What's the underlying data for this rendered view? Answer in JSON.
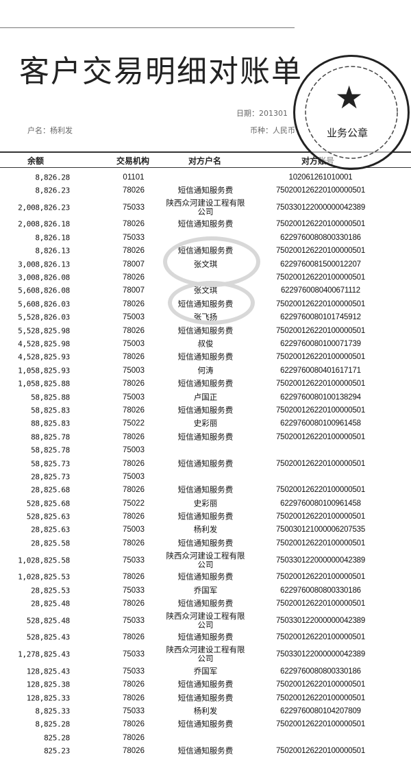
{
  "document": {
    "title": "客户交易明细对账单",
    "account_name_label": "户名：",
    "account_name": "杨利发",
    "date_label": "日期：",
    "date": "201301",
    "currency_label": "币种：",
    "currency": "人民币"
  },
  "stamp": {
    "label": "业务公章",
    "icon": "star-icon",
    "color": "#222222"
  },
  "table": {
    "columns": [
      "余额",
      "交易机构",
      "对方户名",
      "对方账号"
    ],
    "rows": [
      {
        "balance": "8,826.28",
        "org": "01101",
        "name": "",
        "account": "102061261010001"
      },
      {
        "balance": "8,826.23",
        "org": "78026",
        "name": "短信通知服务费",
        "account": "750200126220100000501"
      },
      {
        "balance": "2,008,826.23",
        "org": "75033",
        "name": "陕西众河建设工程有限公司",
        "account": "750330122000000042389",
        "double": true
      },
      {
        "balance": "2,008,826.18",
        "org": "78026",
        "name": "短信通知服务费",
        "account": "750200126220100000501"
      },
      {
        "balance": "8,826.18",
        "org": "75033",
        "name": "",
        "account": "6229760080800330186"
      },
      {
        "balance": "8,826.13",
        "org": "78026",
        "name": "短信通知服务费",
        "account": "750200126220100000501"
      },
      {
        "balance": "3,008,826.13",
        "org": "78007",
        "name": "张文琪",
        "account": "6229760081500012207"
      },
      {
        "balance": "3,008,826.08",
        "org": "78026",
        "name": "",
        "account": "750200126220100000501"
      },
      {
        "balance": "5,608,826.08",
        "org": "78007",
        "name": "张文琪",
        "account": "6229760080400671112"
      },
      {
        "balance": "5,608,826.03",
        "org": "78026",
        "name": "短信通知服务费",
        "account": "750200126220100000501"
      },
      {
        "balance": "5,528,826.03",
        "org": "75003",
        "name": "张飞扬",
        "account": "6229760080101745912"
      },
      {
        "balance": "5,528,825.98",
        "org": "78026",
        "name": "短信通知服务费",
        "account": "750200126220100000501"
      },
      {
        "balance": "4,528,825.98",
        "org": "75003",
        "name": "叔俊",
        "account": "6229760080100071739"
      },
      {
        "balance": "4,528,825.93",
        "org": "78026",
        "name": "短信通知服务费",
        "account": "750200126220100000501"
      },
      {
        "balance": "1,058,825.93",
        "org": "75003",
        "name": "何涛",
        "account": "6229760080401617171"
      },
      {
        "balance": "1,058,825.88",
        "org": "78026",
        "name": "短信通知服务费",
        "account": "750200126220100000501"
      },
      {
        "balance": "58,825.88",
        "org": "75003",
        "name": "卢国正",
        "account": "6229760080100138294"
      },
      {
        "balance": "58,825.83",
        "org": "78026",
        "name": "短信通知服务费",
        "account": "750200126220100000501"
      },
      {
        "balance": "88,825.83",
        "org": "75022",
        "name": "史彩丽",
        "account": "6229760080100961458"
      },
      {
        "balance": "88,825.78",
        "org": "78026",
        "name": "短信通知服务费",
        "account": "750200126220100000501"
      },
      {
        "balance": "58,825.78",
        "org": "75003",
        "name": "",
        "account": ""
      },
      {
        "balance": "58,825.73",
        "org": "78026",
        "name": "短信通知服务费",
        "account": "750200126220100000501"
      },
      {
        "balance": "28,825.73",
        "org": "75003",
        "name": "",
        "account": ""
      },
      {
        "balance": "28,825.68",
        "org": "78026",
        "name": "短信通知服务费",
        "account": "750200126220100000501"
      },
      {
        "balance": "528,825.68",
        "org": "75022",
        "name": "史彩丽",
        "account": "6229760080100961458"
      },
      {
        "balance": "528,825.63",
        "org": "78026",
        "name": "短信通知服务费",
        "account": "750200126220100000501"
      },
      {
        "balance": "28,825.63",
        "org": "75003",
        "name": "杨利发",
        "account": "750030121000006207535"
      },
      {
        "balance": "28,825.58",
        "org": "78026",
        "name": "短信通知服务费",
        "account": "750200126220100000501"
      },
      {
        "balance": "1,028,825.58",
        "org": "75033",
        "name": "陕西众河建设工程有限公司",
        "account": "750330122000000042389",
        "double": true
      },
      {
        "balance": "1,028,825.53",
        "org": "78026",
        "name": "短信通知服务费",
        "account": "750200126220100000501"
      },
      {
        "balance": "28,825.53",
        "org": "75033",
        "name": "乔国军",
        "account": "6229760080800330186"
      },
      {
        "balance": "28,825.48",
        "org": "78026",
        "name": "短信通知服务费",
        "account": "750200126220100000501"
      },
      {
        "balance": "528,825.48",
        "org": "75033",
        "name": "陕西众河建设工程有限公司",
        "account": "750330122000000042389",
        "double": true
      },
      {
        "balance": "528,825.43",
        "org": "78026",
        "name": "短信通知服务费",
        "account": "750200126220100000501"
      },
      {
        "balance": "1,278,825.43",
        "org": "75033",
        "name": "陕西众河建设工程有限公司",
        "account": "750330122000000042389",
        "double": true
      },
      {
        "balance": "128,825.43",
        "org": "75033",
        "name": "乔国军",
        "account": "6229760080800330186"
      },
      {
        "balance": "128,825.38",
        "org": "78026",
        "name": "短信通知服务费",
        "account": "750200126220100000501"
      },
      {
        "balance": "128,825.33",
        "org": "78026",
        "name": "短信通知服务费",
        "account": "750200126220100000501"
      },
      {
        "balance": "8,825.33",
        "org": "75033",
        "name": "杨利发",
        "account": "6229760080104207809"
      },
      {
        "balance": "8,825.28",
        "org": "78026",
        "name": "短信通知服务费",
        "account": "750200126220100000501"
      },
      {
        "balance": "825.28",
        "org": "78026",
        "name": "",
        "account": ""
      },
      {
        "balance": "825.23",
        "org": "78026",
        "name": "短信通知服务费",
        "account": "750200126220100000501"
      }
    ]
  }
}
